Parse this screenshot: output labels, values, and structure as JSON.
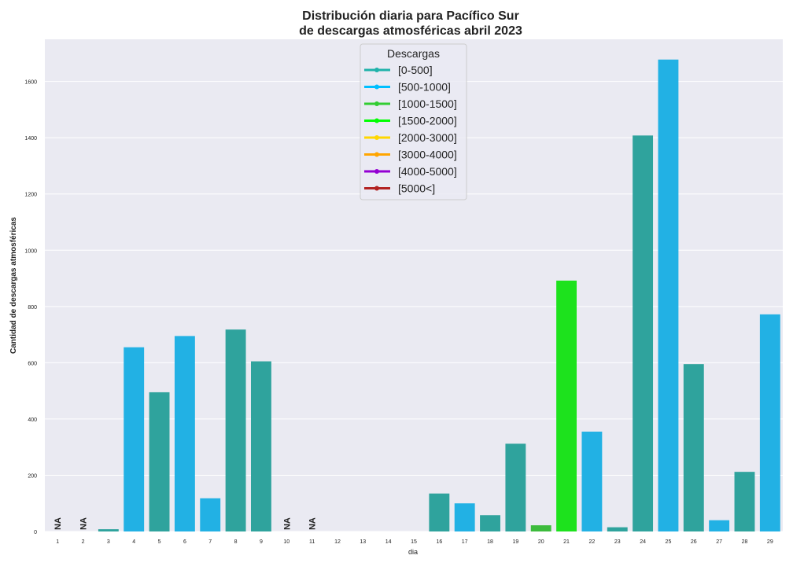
{
  "chart_data": {
    "type": "bar",
    "title_line1": "Distribución diaria para Pacífico Sur",
    "title_line2": "de descargas atmosféricas abril 2023",
    "xlabel": "dia",
    "ylabel": "Cantidad de descargas atmosféricas",
    "ylim": [
      0,
      1750
    ],
    "yticks": [
      0,
      200,
      400,
      600,
      800,
      1000,
      1200,
      1400,
      1600
    ],
    "grid": true,
    "legend_position": "top-center",
    "legend": {
      "title": "Descargas",
      "entries": [
        {
          "label": "[0-500]",
          "color": "#20b2aa"
        },
        {
          "label": "[500-1000]",
          "color": "#00bfff"
        },
        {
          "label": "[1000-1500]",
          "color": "#32cd32"
        },
        {
          "label": "[1500-2000]",
          "color": "#00ff00"
        },
        {
          "label": "[2000-3000]",
          "color": "#ffd700"
        },
        {
          "label": "[3000-4000]",
          "color": "#ffa500"
        },
        {
          "label": "[4000-5000]",
          "color": "#9400d3"
        },
        {
          "label": "[5000<]",
          "color": "#b22222"
        }
      ]
    },
    "missing_label": "NA",
    "categories": [
      "1",
      "2",
      "3",
      "4",
      "5",
      "6",
      "7",
      "8",
      "9",
      "10",
      "11",
      "12",
      "13",
      "14",
      "15",
      "16",
      "17",
      "18",
      "19",
      "20",
      "21",
      "22",
      "23",
      "24",
      "25",
      "26",
      "27",
      "28",
      "29"
    ],
    "values": [
      null,
      null,
      8,
      655,
      495,
      695,
      118,
      718,
      605,
      null,
      null,
      0,
      0,
      0,
      0,
      135,
      100,
      58,
      312,
      22,
      892,
      355,
      15,
      1408,
      1678,
      595,
      40,
      212,
      772
    ],
    "colors": [
      "#2fa39d",
      "#2fa39d",
      "#2fa39d",
      "#22b1e4",
      "#2fa39d",
      "#22b1e4",
      "#22b1e4",
      "#2fa39d",
      "#2fa39d",
      "#2fa39d",
      "#2fa39d",
      "#2fa39d",
      "#2fa39d",
      "#2fa39d",
      "#2fa39d",
      "#2fa39d",
      "#22b1e4",
      "#2fa39d",
      "#2fa39d",
      "#3dbb3d",
      "#1de21d",
      "#22b1e4",
      "#2fa39d",
      "#2fa39d",
      "#22b1e4",
      "#2fa39d",
      "#22b1e4",
      "#2fa39d",
      "#22b1e4"
    ]
  },
  "colors": {
    "plot_background": "#eaeaf2",
    "gridline": "#ffffff"
  }
}
